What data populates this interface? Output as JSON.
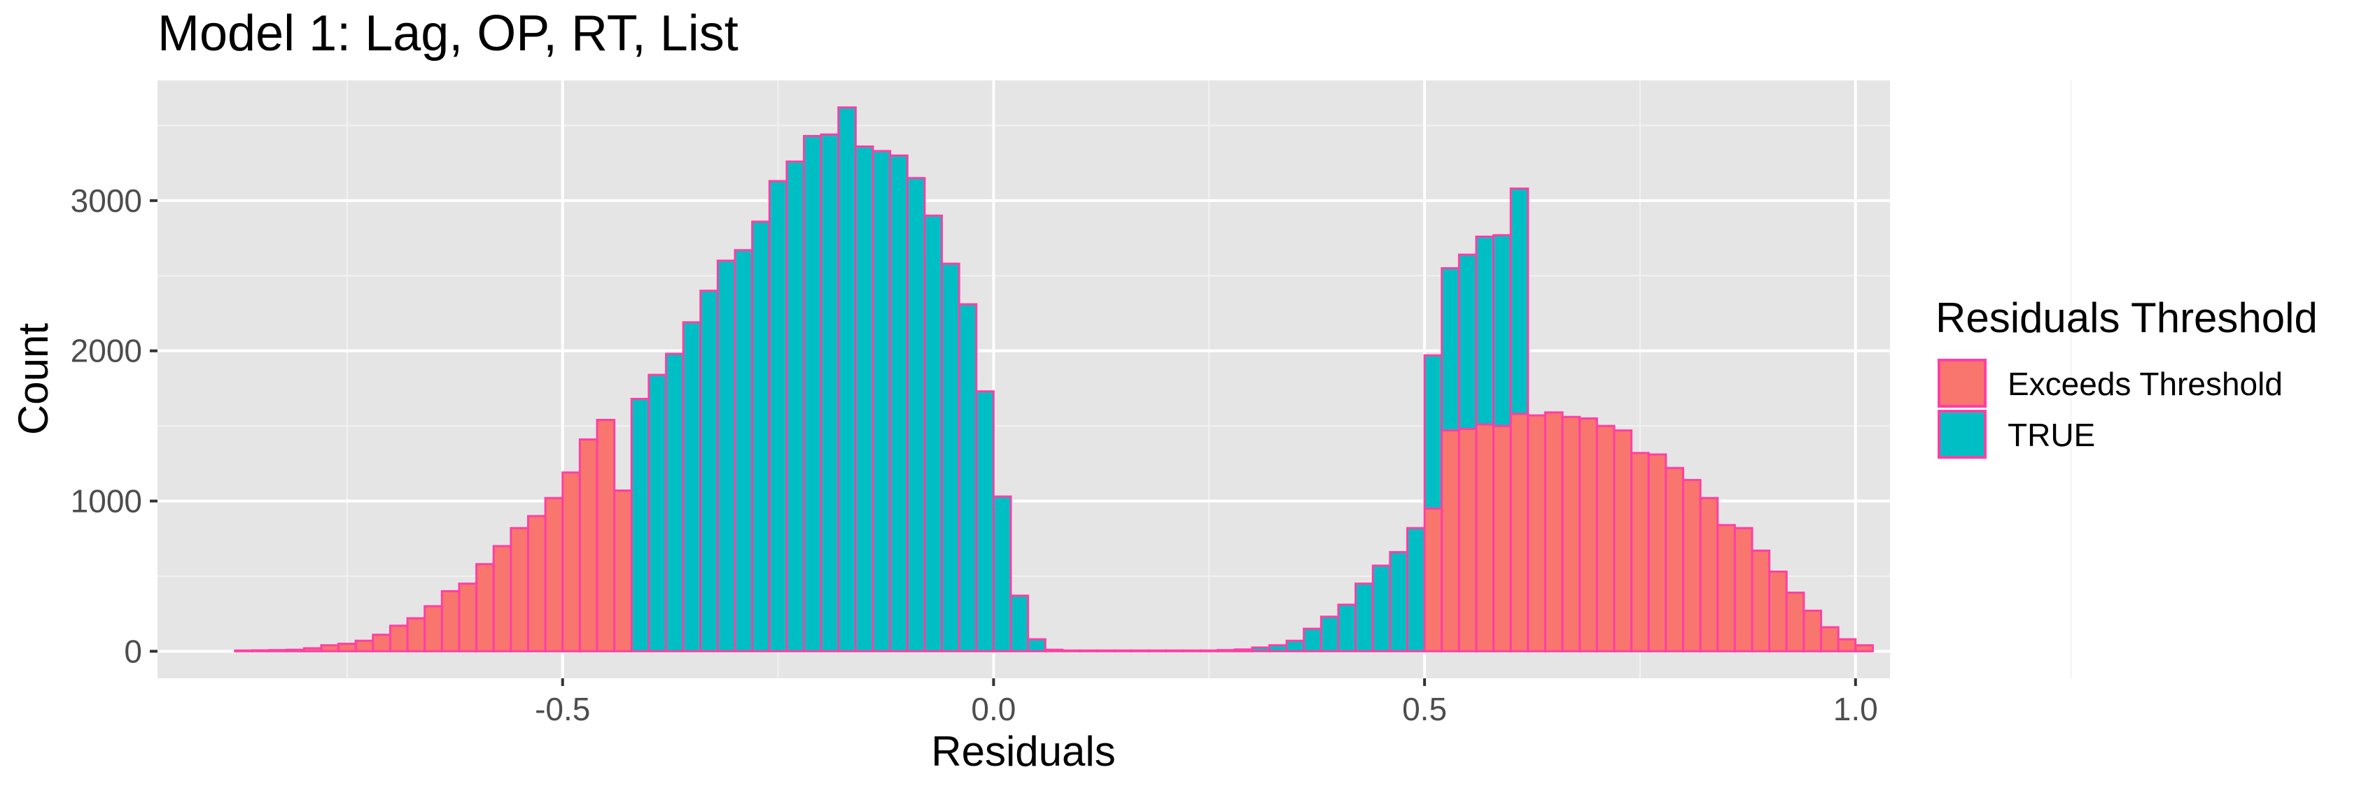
{
  "chart_data": {
    "type": "bar",
    "subtype": "histogram",
    "title": "Model 1: Lag, OP, RT, List",
    "xlabel": "Residuals",
    "ylabel": "Count",
    "xlim": [
      -0.97,
      1.04
    ],
    "ylim": [
      -180,
      3800
    ],
    "x_ticks": [
      -0.5,
      0.0,
      0.5,
      1.0
    ],
    "x_tick_labels": [
      "-0.5",
      "0.0",
      "0.5",
      "1.0"
    ],
    "y_ticks": [
      0,
      1000,
      2000,
      3000
    ],
    "y_tick_labels": [
      "0",
      "1000",
      "2000",
      "3000"
    ],
    "grid": true,
    "bin_start": -0.88,
    "bin_width": 0.02,
    "bar_outline_color": "#ff3fa4",
    "legend": {
      "title": "Residuals Threshold",
      "position": "right",
      "items": [
        {
          "label": "Exceeds Threshold",
          "color": "#f8766d"
        },
        {
          "label": "TRUE",
          "color": "#00bfc4"
        }
      ]
    },
    "series": [
      {
        "key": "exceeds",
        "color": "#f8766d",
        "values": [
          5,
          6,
          8,
          10,
          20,
          40,
          50,
          70,
          110,
          170,
          220,
          300,
          400,
          450,
          580,
          700,
          820,
          900,
          1020,
          1190,
          1410,
          1540,
          1070,
          0,
          0,
          0,
          0,
          0,
          0,
          0,
          0,
          0,
          0,
          0,
          0,
          0,
          0,
          0,
          0,
          0,
          0,
          0,
          0,
          0,
          0,
          0,
          0,
          0,
          0,
          0,
          0,
          0,
          0,
          0,
          0,
          0,
          0,
          0,
          0,
          0,
          0,
          0,
          0,
          0,
          0,
          0,
          0,
          0,
          0,
          950,
          1470,
          1480,
          1510,
          1500,
          1580,
          1570,
          1590,
          1560,
          1550,
          1500,
          1470,
          1320,
          1310,
          1220,
          1140,
          1020,
          840,
          820,
          670,
          530,
          390,
          270,
          160,
          80,
          40,
          0,
          0,
          0,
          0,
          0
        ]
      },
      {
        "key": "true",
        "color": "#00bfc4",
        "values": [
          0,
          0,
          0,
          0,
          0,
          0,
          0,
          0,
          0,
          0,
          0,
          0,
          0,
          0,
          0,
          0,
          0,
          0,
          0,
          0,
          0,
          0,
          0,
          1680,
          1840,
          1980,
          2190,
          2400,
          2600,
          2670,
          2860,
          3130,
          3260,
          3430,
          3440,
          3620,
          3360,
          3330,
          3300,
          3150,
          2900,
          2580,
          2310,
          1730,
          1030,
          370,
          80,
          10,
          5,
          5,
          5,
          5,
          5,
          5,
          5,
          5,
          5,
          8,
          12,
          25,
          40,
          70,
          150,
          230,
          310,
          450,
          570,
          660,
          820,
          1020,
          1080,
          1160,
          1250,
          1270,
          1500,
          0,
          0,
          0,
          0,
          0,
          0,
          0,
          0,
          0,
          0,
          0,
          0,
          0,
          0,
          0,
          0,
          0,
          0,
          0,
          0,
          0,
          0,
          0,
          0,
          0,
          0,
          0,
          0,
          0,
          0,
          0
        ]
      }
    ]
  }
}
